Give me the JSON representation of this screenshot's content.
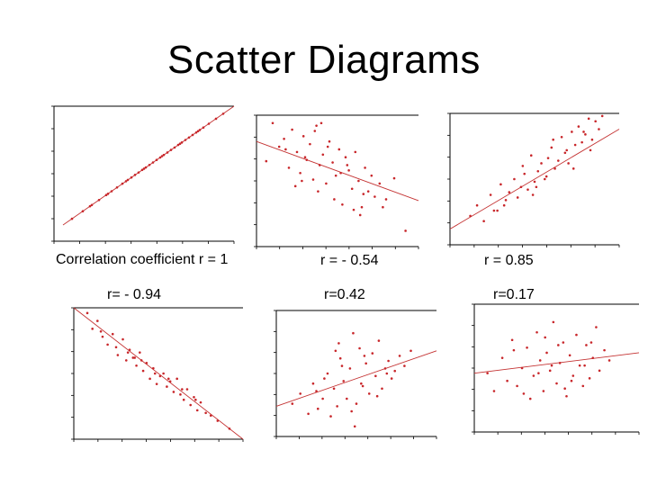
{
  "title": "Scatter Diagrams",
  "chart_data": [
    {
      "type": "scatter",
      "title": "Correlation coefficient r = 1",
      "r": 1.0,
      "xlim": [
        0,
        10
      ],
      "ylim": [
        0,
        10
      ],
      "trend": [
        [
          0.5,
          1.2
        ],
        [
          10,
          10
        ]
      ],
      "x": [
        1.0,
        1.6,
        2.1,
        2.5,
        2.9,
        3.2,
        3.5,
        3.8,
        4.1,
        4.3,
        4.5,
        4.7,
        4.9,
        5.1,
        5.3,
        5.5,
        5.7,
        5.9,
        6.1,
        6.3,
        6.5,
        6.7,
        6.9,
        7.1,
        7.3,
        7.5,
        7.7,
        7.9,
        8.1,
        8.3,
        8.6,
        9.0,
        9.4,
        3.0,
        4.0,
        5.0,
        6.0,
        7.0,
        8.0,
        2.0
      ],
      "y": [
        1.66,
        2.22,
        2.68,
        3.05,
        3.42,
        3.7,
        3.98,
        4.26,
        4.54,
        4.72,
        4.91,
        5.09,
        5.28,
        5.46,
        5.65,
        5.83,
        6.02,
        6.2,
        6.39,
        6.57,
        6.76,
        6.94,
        7.13,
        7.31,
        7.5,
        7.68,
        7.87,
        8.05,
        8.24,
        8.42,
        8.7,
        9.07,
        9.44,
        3.51,
        4.44,
        5.37,
        6.3,
        7.22,
        8.15,
        2.59
      ]
    },
    {
      "type": "scatter",
      "title": "r = - 0.54",
      "r": -0.54,
      "xlim": [
        0,
        10
      ],
      "ylim": [
        0,
        10
      ],
      "trend": [
        [
          0,
          8.0
        ],
        [
          10,
          3.5
        ]
      ],
      "x": [
        0.6,
        1.0,
        1.4,
        1.7,
        2.0,
        2.2,
        2.5,
        2.7,
        2.9,
        3.1,
        3.3,
        3.5,
        3.7,
        3.9,
        4.1,
        4.3,
        4.5,
        4.7,
        4.9,
        5.1,
        5.3,
        5.5,
        5.7,
        5.9,
        6.1,
        6.3,
        6.5,
        6.7,
        6.9,
        7.1,
        7.3,
        7.6,
        8.0,
        8.5,
        9.2,
        2.4,
        3.6,
        4.8,
        6.0,
        1.8,
        5.2,
        6.6,
        3.0,
        4.4,
        7.8,
        2.8,
        5.6,
        3.8,
        6.4,
        4.0
      ],
      "y": [
        6.5,
        9.4,
        7.6,
        8.2,
        6.0,
        8.9,
        7.2,
        5.6,
        8.4,
        6.6,
        7.8,
        5.1,
        9.2,
        6.2,
        7.0,
        4.8,
        8.0,
        6.4,
        5.4,
        7.4,
        3.2,
        6.8,
        5.8,
        4.4,
        7.2,
        5.0,
        3.0,
        6.0,
        4.2,
        5.4,
        3.8,
        4.8,
        3.6,
        5.2,
        1.2,
        4.6,
        8.8,
        3.6,
        2.8,
        7.4,
        5.6,
        4.0,
        6.8,
        7.6,
        3.0,
        5.0,
        6.2,
        4.2,
        2.4,
        9.4
      ]
    },
    {
      "type": "scatter",
      "title": "r = 0.85",
      "r": 0.85,
      "xlim": [
        0,
        10
      ],
      "ylim": [
        0,
        10
      ],
      "trend": [
        [
          0,
          1.2
        ],
        [
          10,
          8.8
        ]
      ],
      "x": [
        1.2,
        1.6,
        2.0,
        2.4,
        2.8,
        3.0,
        3.3,
        3.5,
        3.8,
        4.0,
        4.2,
        4.4,
        4.6,
        4.8,
        5.0,
        5.2,
        5.4,
        5.6,
        5.8,
        6.0,
        6.2,
        6.4,
        6.6,
        6.8,
        7.0,
        7.2,
        7.4,
        7.6,
        7.8,
        8.0,
        8.2,
        8.4,
        8.6,
        8.8,
        9.0,
        3.2,
        4.3,
        5.1,
        6.1,
        7.3,
        8.3,
        2.6,
        5.7,
        6.9,
        7.9,
        4.9
      ],
      "y": [
        2.2,
        3.0,
        1.8,
        3.8,
        2.6,
        4.6,
        3.4,
        4.0,
        5.0,
        3.6,
        4.4,
        5.4,
        4.2,
        6.8,
        4.8,
        5.6,
        6.2,
        5.0,
        6.6,
        7.4,
        5.8,
        6.4,
        8.2,
        7.0,
        6.2,
        8.6,
        7.6,
        9.0,
        7.8,
        8.4,
        9.6,
        8.0,
        9.4,
        8.8,
        9.8,
        3.0,
        6.0,
        4.4,
        8.0,
        5.8,
        7.2,
        2.6,
        5.2,
        7.2,
        8.6,
        3.8
      ]
    },
    {
      "type": "scatter",
      "title": "r= - 0.94",
      "r": -0.94,
      "xlim": [
        0,
        10
      ],
      "ylim": [
        0,
        10
      ],
      "trend": [
        [
          0,
          10
        ],
        [
          10,
          0
        ]
      ],
      "x": [
        0.8,
        1.1,
        1.4,
        1.7,
        2.0,
        2.3,
        2.6,
        2.9,
        3.1,
        3.3,
        3.5,
        3.7,
        3.9,
        4.1,
        4.3,
        4.5,
        4.7,
        4.9,
        5.1,
        5.3,
        5.5,
        5.7,
        5.9,
        6.1,
        6.3,
        6.5,
        6.7,
        6.9,
        7.1,
        7.3,
        7.5,
        7.8,
        8.1,
        8.5,
        9.2,
        2.5,
        3.2,
        4.0,
        4.8,
        5.6,
        6.4,
        7.2,
        1.6,
        3.6
      ],
      "y": [
        9.6,
        8.4,
        9.0,
        7.8,
        7.2,
        8.0,
        6.4,
        7.6,
        6.0,
        6.8,
        6.2,
        5.6,
        6.6,
        5.2,
        5.8,
        4.6,
        5.4,
        4.2,
        4.8,
        5.0,
        4.0,
        4.4,
        3.6,
        4.6,
        3.4,
        3.0,
        3.8,
        2.6,
        3.2,
        2.2,
        2.8,
        2.0,
        1.8,
        1.4,
        0.8,
        7.0,
        6.6,
        6.0,
        5.0,
        4.6,
        3.8,
        3.0,
        8.2,
        6.2
      ]
    },
    {
      "type": "scatter",
      "title": "r=0.42",
      "r": 0.42,
      "xlim": [
        0,
        10
      ],
      "ylim": [
        0,
        10
      ],
      "trend": [
        [
          0,
          2.4
        ],
        [
          10,
          6.8
        ]
      ],
      "x": [
        1.0,
        1.5,
        2.0,
        2.3,
        2.6,
        2.9,
        3.2,
        3.4,
        3.6,
        3.8,
        4.0,
        4.2,
        4.4,
        4.6,
        4.8,
        5.0,
        5.2,
        5.4,
        5.6,
        5.8,
        6.0,
        6.2,
        6.4,
        6.6,
        6.8,
        7.0,
        7.2,
        7.4,
        7.7,
        8.0,
        8.4,
        3.0,
        3.9,
        4.7,
        5.5,
        6.3,
        2.5,
        4.1,
        5.3,
        6.9,
        4.9,
        3.7
      ],
      "y": [
        2.6,
        3.4,
        1.8,
        4.2,
        2.2,
        3.0,
        5.0,
        1.6,
        3.8,
        2.4,
        6.2,
        4.4,
        3.0,
        5.4,
        8.2,
        2.6,
        7.0,
        4.0,
        5.8,
        3.4,
        6.6,
        4.8,
        7.6,
        3.8,
        5.4,
        6.0,
        4.6,
        5.2,
        6.4,
        5.6,
        6.8,
        4.6,
        7.4,
        2.0,
        6.4,
        3.2,
        3.6,
        5.6,
        4.2,
        5.0,
        0.8,
        6.8
      ]
    },
    {
      "type": "scatter",
      "title": "r=0.17",
      "r": 0.17,
      "xlim": [
        0,
        10
      ],
      "ylim": [
        0,
        10
      ],
      "trend": [
        [
          0,
          4.6
        ],
        [
          10,
          6.2
        ]
      ],
      "x": [
        0.8,
        1.2,
        1.7,
        2.0,
        2.3,
        2.6,
        2.9,
        3.2,
        3.4,
        3.6,
        3.8,
        4.0,
        4.2,
        4.4,
        4.6,
        4.8,
        5.0,
        5.2,
        5.4,
        5.6,
        5.8,
        6.0,
        6.2,
        6.4,
        6.6,
        6.8,
        7.0,
        7.2,
        7.4,
        7.6,
        7.9,
        8.2,
        3.0,
        4.3,
        5.1,
        5.9,
        6.7,
        2.4,
        3.9,
        5.5,
        7.1,
        4.7
      ],
      "y": [
        4.6,
        3.2,
        5.8,
        4.0,
        7.2,
        3.6,
        5.0,
        6.6,
        2.6,
        4.4,
        7.8,
        5.6,
        3.2,
        6.2,
        4.8,
        8.6,
        3.8,
        5.4,
        7.0,
        2.8,
        6.0,
        4.4,
        7.6,
        5.2,
        3.6,
        6.8,
        4.2,
        5.8,
        8.2,
        4.8,
        6.4,
        5.6,
        3.0,
        7.4,
        6.8,
        4.0,
        5.2,
        6.4,
        4.6,
        3.4,
        7.0,
        5.2
      ]
    }
  ]
}
